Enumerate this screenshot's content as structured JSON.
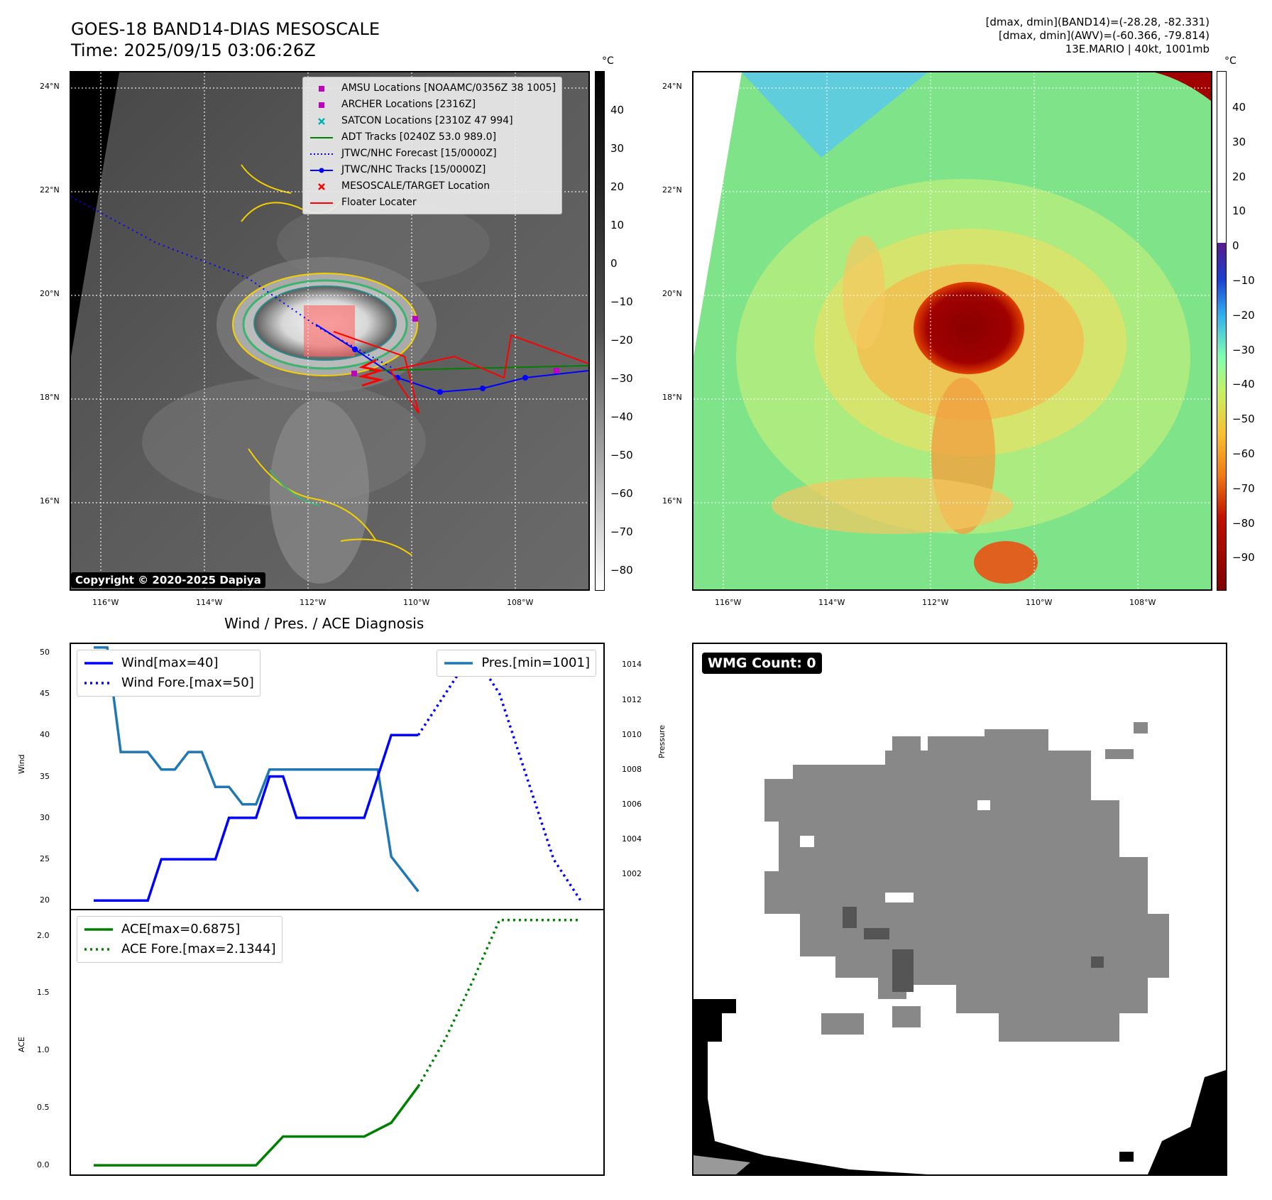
{
  "header": {
    "title_line1": "GOES-18 BAND14-DIAS MESOSCALE",
    "title_line2": "Time: 2025/09/15 03:06:26Z",
    "info_line1": "[dmax, dmin](BAND14)=(-28.28, -82.331)",
    "info_line2": "[dmax, dmin](AWV)=(-60.366, -79.814)",
    "info_line3": "13E.MARIO | 40kt, 1001mb"
  },
  "map_axes": {
    "lat_ticks": [
      "24°N",
      "22°N",
      "20°N",
      "18°N",
      "16°N"
    ],
    "lon_ticks": [
      "116°W",
      "114°W",
      "112°W",
      "110°W",
      "108°W"
    ]
  },
  "ir_panel": {
    "copyright": "Copyright © 2020-2025 Dapiya",
    "colorbar_unit": "°C",
    "colorbar_ticks": [
      "40",
      "30",
      "20",
      "10",
      "0",
      "−10",
      "−20",
      "−30",
      "−40",
      "−50",
      "−60",
      "−70",
      "−80"
    ],
    "legend": [
      {
        "label": "AMSU Locations [NOAAMC/0356Z 38 1005]",
        "icon": "square-marker",
        "color": "#c000c0"
      },
      {
        "label": "ARCHER Locations [2316Z]",
        "icon": "square-marker",
        "color": "#c000c0"
      },
      {
        "label": "SATCON Locations [2310Z 47 994]",
        "icon": "x-marker",
        "color": "#00b0b0"
      },
      {
        "label": "ADT Tracks [0240Z 53.0 989.0]",
        "icon": "solid-line",
        "color": "#008000"
      },
      {
        "label": "JTWC/NHC Forecast [15/0000Z]",
        "icon": "dotted-line",
        "color": "#0000ff"
      },
      {
        "label": "JTWC/NHC Tracks [15/0000Z]",
        "icon": "line-dot",
        "color": "#0000ff"
      },
      {
        "label": "MESOSCALE/TARGET Location",
        "icon": "x-marker",
        "color": "#ff0000"
      },
      {
        "label": "Floater Locater",
        "icon": "solid-line",
        "color": "#ff0000"
      }
    ]
  },
  "awv_panel": {
    "colorbar_unit": "°C",
    "colorbar_ticks": [
      "40",
      "30",
      "20",
      "10",
      "0",
      "−10",
      "−20",
      "−30",
      "−40",
      "−50",
      "−60",
      "−70",
      "−80",
      "−90"
    ]
  },
  "wmg_panel": {
    "badge": "WMG Count: 0"
  },
  "chart_data": [
    {
      "type": "line",
      "title": "Wind / Pres. / ACE Diagnosis",
      "ylabel": "Wind",
      "ylim": [
        19,
        51
      ],
      "y_ticks": [
        "50",
        "45",
        "40",
        "35",
        "30",
        "25",
        "20"
      ],
      "x_index_range": [
        0,
        36
      ],
      "series": [
        {
          "name": "Wind[max=40]",
          "style": "solid",
          "color": "#0000ff",
          "x": [
            0,
            1,
            2,
            3,
            4,
            5,
            6,
            7,
            8,
            9,
            10,
            11,
            12,
            13,
            14,
            15,
            16,
            17,
            18,
            19,
            20,
            21,
            22,
            23,
            24
          ],
          "values": [
            20,
            20,
            20,
            20,
            20,
            25,
            25,
            25,
            25,
            25,
            30,
            30,
            30,
            35,
            35,
            30,
            30,
            30,
            30,
            30,
            30,
            35,
            40,
            40,
            40
          ]
        },
        {
          "name": "Wind Fore.[max=50]",
          "style": "dotted",
          "color": "#0000ff",
          "x": [
            24,
            26,
            28,
            30,
            32,
            34,
            36
          ],
          "values": [
            40,
            45,
            50,
            45,
            35,
            25,
            20
          ]
        }
      ],
      "secondary_axis": {
        "ylabel": "Pressure",
        "ylim": [
          1000.0,
          1015.2
        ],
        "y_ticks": [
          "1014",
          "1012",
          "1010",
          "1008",
          "1006",
          "1004",
          "1002"
        ],
        "series": [
          {
            "name": "Pres.[min=1001]",
            "style": "solid",
            "color": "#1f77b4",
            "x": [
              0,
              1,
              2,
              3,
              4,
              5,
              6,
              7,
              8,
              9,
              10,
              11,
              12,
              13,
              14,
              15,
              16,
              17,
              18,
              19,
              20,
              21,
              22,
              23,
              24
            ],
            "values": [
              1015,
              1015,
              1009,
              1009,
              1009,
              1008,
              1008,
              1009,
              1009,
              1007,
              1007,
              1006,
              1006,
              1008,
              1008,
              1008,
              1008,
              1008,
              1008,
              1008,
              1008,
              1008,
              1003,
              1002,
              1001
            ]
          }
        ]
      }
    },
    {
      "type": "line",
      "ylabel": "ACE",
      "ylim": [
        -0.08,
        2.22
      ],
      "y_ticks": [
        "2.0",
        "1.5",
        "1.0",
        "0.5",
        "0.0"
      ],
      "x_index_range": [
        0,
        36
      ],
      "series": [
        {
          "name": "ACE[max=0.6875]",
          "style": "solid",
          "color": "#008000",
          "x": [
            0,
            2,
            4,
            6,
            8,
            10,
            12,
            14,
            16,
            18,
            20,
            22,
            24
          ],
          "values": [
            0,
            0,
            0,
            0,
            0,
            0,
            0,
            0.25,
            0.25,
            0.25,
            0.25,
            0.37,
            0.6875
          ]
        },
        {
          "name": "ACE Fore.[max=2.1344]",
          "style": "dotted",
          "color": "#008000",
          "x": [
            24,
            26,
            28,
            30,
            32,
            34,
            36
          ],
          "values": [
            0.6875,
            1.1,
            1.6,
            2.1344,
            2.1344,
            2.1344,
            2.1344
          ]
        }
      ]
    }
  ]
}
